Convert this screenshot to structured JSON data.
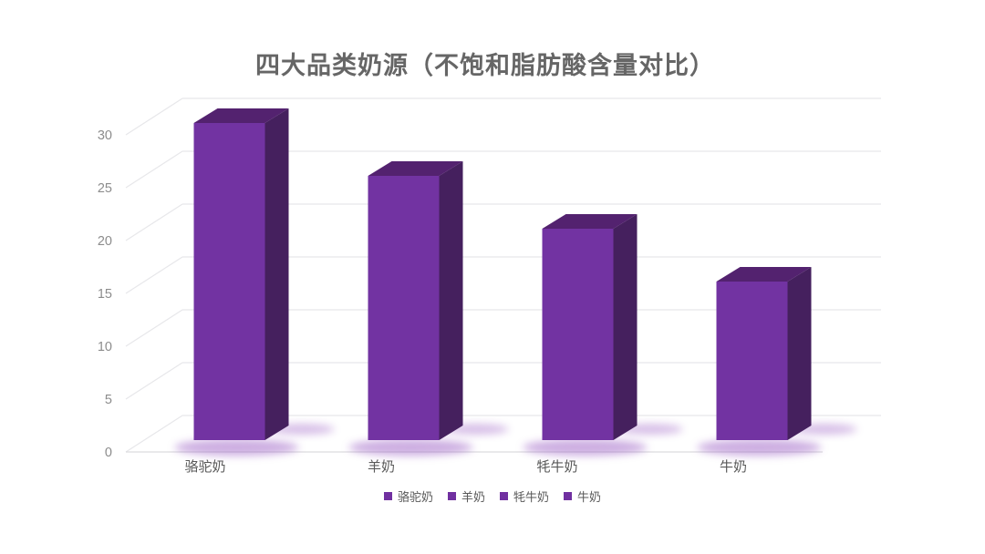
{
  "chart_data": {
    "type": "bar",
    "style": "3d-column",
    "title": "四大品类奶源（不饱和脂肪酸含量对比）",
    "categories": [
      "骆驼奶",
      "羊奶",
      "牦牛奶",
      "牛奶"
    ],
    "values": [
      30,
      25,
      20,
      15
    ],
    "legend": [
      "骆驼奶",
      "羊奶",
      "牦牛奶",
      "牛奶"
    ],
    "legend_position": "bottom",
    "yticks": [
      0,
      5,
      10,
      15,
      20,
      25,
      30
    ],
    "ylim": [
      0,
      30
    ],
    "xlabel": "",
    "ylabel": "",
    "grid": true
  },
  "colors": {
    "bar_front": "#7233A2",
    "bar_side": "#45205E",
    "bar_top": "#53226F",
    "bar_glow": "#9B5FC4",
    "legend_marker": "#7030A0",
    "gridline": "#E7E7EA",
    "baseline": "#DCDCDF",
    "title_text": "#666666",
    "axis_tick_text": "#8C8C8C",
    "category_text": "#595959",
    "legend_text": "#595959"
  }
}
